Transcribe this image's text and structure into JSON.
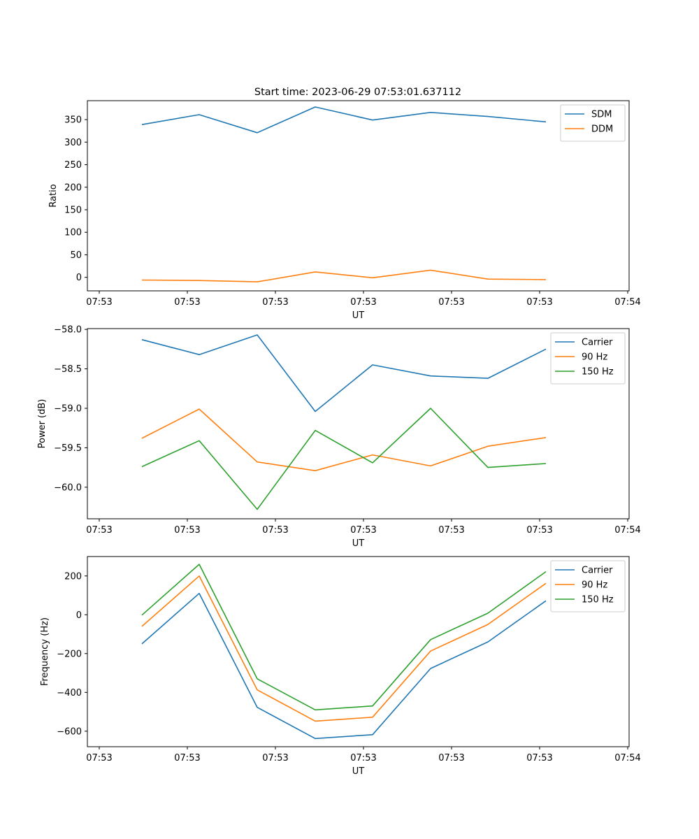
{
  "figure": {
    "title": "Start time: 2023-06-29 07:53:01.637112"
  },
  "chart_data": [
    {
      "type": "line",
      "xlabel": "UT",
      "ylabel": "Ratio",
      "x_tick_labels": [
        "07:53",
        "07:53",
        "07:53",
        "07:53",
        "07:53",
        "07:53",
        "07:54"
      ],
      "y_ticks": [
        0,
        50,
        100,
        150,
        200,
        250,
        300,
        350
      ],
      "ylim": [
        -30,
        392
      ],
      "legend_position": "top-right",
      "series": [
        {
          "name": "SDM",
          "color": "#1f77b4",
          "values": [
            339,
            361,
            321,
            378,
            349,
            366,
            357,
            345
          ]
        },
        {
          "name": "DDM",
          "color": "#ff7f0e",
          "values": [
            -6,
            -7,
            -10,
            12,
            -1,
            16,
            -4,
            -5
          ]
        }
      ]
    },
    {
      "type": "line",
      "xlabel": "UT",
      "ylabel": "Power (dB)",
      "x_tick_labels": [
        "07:53",
        "07:53",
        "07:53",
        "07:53",
        "07:53",
        "07:53",
        "07:54"
      ],
      "y_ticks": [
        -60.0,
        -59.5,
        -59.0,
        -58.5,
        -58.0
      ],
      "y_tick_labels": [
        "−60.0",
        "−59.5",
        "−59.0",
        "−58.5",
        "−58.0"
      ],
      "ylim": [
        -60.4,
        -57.99
      ],
      "legend_position": "top-right",
      "series": [
        {
          "name": "Carrier",
          "color": "#1f77b4",
          "values": [
            -58.13,
            -58.32,
            -58.07,
            -59.04,
            -58.45,
            -58.59,
            -58.62,
            -58.25
          ]
        },
        {
          "name": "90 Hz",
          "color": "#ff7f0e",
          "values": [
            -59.38,
            -59.01,
            -59.68,
            -59.79,
            -59.59,
            -59.73,
            -59.48,
            -59.37
          ]
        },
        {
          "name": "150 Hz",
          "color": "#2ca02c",
          "values": [
            -59.74,
            -59.41,
            -60.28,
            -59.28,
            -59.69,
            -59.0,
            -59.75,
            -59.7
          ]
        }
      ]
    },
    {
      "type": "line",
      "xlabel": "UT",
      "ylabel": "Frequency (Hz)",
      "x_tick_labels": [
        "07:53",
        "07:53",
        "07:53",
        "07:53",
        "07:53",
        "07:53",
        "07:54"
      ],
      "y_ticks": [
        -600,
        -400,
        -200,
        0,
        200
      ],
      "y_tick_labels": [
        "−600",
        "−400",
        "−200",
        "0",
        "200"
      ],
      "ylim": [
        -680,
        300
      ],
      "legend_position": "top-right",
      "series": [
        {
          "name": "Carrier",
          "color": "#1f77b4",
          "values": [
            -150,
            110,
            -477,
            -638,
            -618,
            -277,
            -140,
            72
          ]
        },
        {
          "name": "90 Hz",
          "color": "#ff7f0e",
          "values": [
            -60,
            200,
            -387,
            -548,
            -528,
            -187,
            -50,
            162
          ]
        },
        {
          "name": "150 Hz",
          "color": "#2ca02c",
          "values": [
            -2,
            260,
            -330,
            -490,
            -470,
            -128,
            8,
            222
          ]
        }
      ]
    }
  ]
}
